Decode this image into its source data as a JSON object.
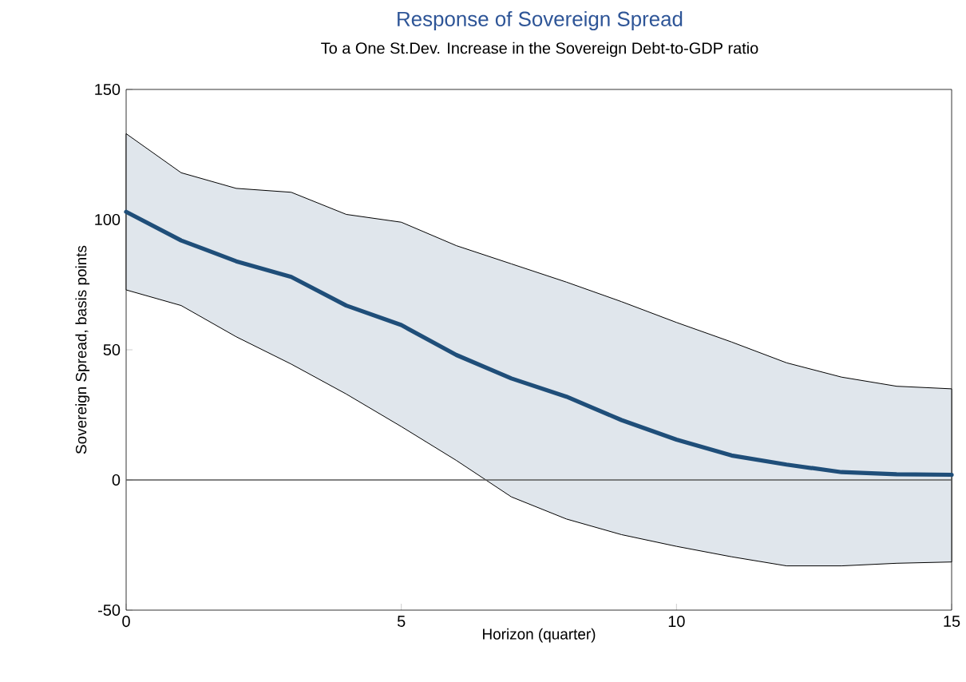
{
  "chart_data": {
    "type": "line",
    "title": "Response of Sovereign Spread",
    "subtitle": "To a One St.Dev. Increase in the Sovereign Debt-to-GDP ratio",
    "xlabel": "Horizon (quarter)",
    "ylabel": "Sovereign Spread, basis points",
    "x": [
      0,
      1,
      2,
      3,
      4,
      5,
      6,
      7,
      8,
      9,
      10,
      11,
      12,
      13,
      14,
      15
    ],
    "series": [
      {
        "color": "#1f4e79",
        "values": [
          103,
          92,
          84,
          78,
          67,
          59.5,
          48,
          39,
          32,
          23,
          15.5,
          9.4,
          5.9,
          3,
          2.2,
          2
        ],
        "lower": [
          73,
          67,
          55,
          44.5,
          33,
          20.5,
          7.5,
          -6.5,
          -15,
          -21,
          -25.5,
          -29.5,
          -33,
          -33,
          -32,
          -31.5
        ],
        "upper": [
          133,
          118,
          112,
          110.5,
          102,
          99,
          90,
          83,
          76,
          68.5,
          60.5,
          53,
          45,
          39.5,
          36,
          35
        ]
      }
    ],
    "xlim": [
      0,
      15
    ],
    "ylim": [
      -50,
      150
    ],
    "xticks": [
      0,
      5,
      10,
      15
    ],
    "yticks": [
      -50,
      0,
      50,
      100,
      150
    ],
    "ref_lines": [
      {
        "axis": "y",
        "value": 0,
        "color": "#595959"
      }
    ],
    "marker": "none",
    "line_style": "solid"
  }
}
